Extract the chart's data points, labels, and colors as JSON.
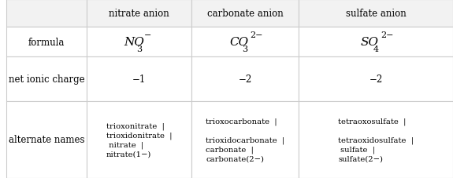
{
  "col_headers": [
    "nitrate anion",
    "carbonate anion",
    "sulfate anion"
  ],
  "row_headers": [
    "formula",
    "net ionic charge",
    "alternate names"
  ],
  "formula_row": [
    {
      "parts": [
        {
          "text": "NO",
          "style": "normal"
        },
        {
          "text": "3",
          "style": "sub"
        },
        {
          "text": "−",
          "style": "super"
        }
      ]
    },
    {
      "parts": [
        {
          "text": "CO",
          "style": "normal"
        },
        {
          "text": "3",
          "style": "sub"
        },
        {
          "text": "2−",
          "style": "super"
        }
      ]
    },
    {
      "parts": [
        {
          "text": "SO",
          "style": "normal"
        },
        {
          "text": "4",
          "style": "sub"
        },
        {
          "text": "2−",
          "style": "super"
        }
      ]
    }
  ],
  "charge_row": [
    "−1",
    "−2",
    "−2"
  ],
  "names_row": [
    "trioxonitrate  |\ntrioxidonitrate  |\n nitrate  |\nnitrate(1−)",
    "trioxocarbonate  |\n\ntrioxidocarbonate  |\ncarbonate  |\ncarbonate(2−)",
    "tetraoxosulfate  |\n\ntetraoxidosulfate  |\n sulfate  |\nsulfate(2−)"
  ],
  "bg_color": "#ffffff",
  "border_color": "#cccccc",
  "header_bg": "#f5f5f5",
  "text_color": "#000000",
  "font_size": 8.5,
  "header_font_size": 8.5
}
